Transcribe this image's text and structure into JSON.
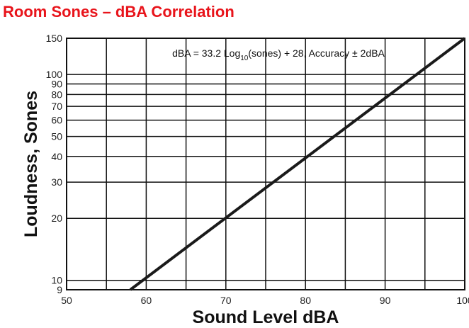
{
  "chart_data": {
    "type": "line",
    "title": "Room Sones – dBA Correlation",
    "xlabel": "Sound Level dBA",
    "ylabel": "Loudness, Sones",
    "x_scale": "linear",
    "y_scale": "log",
    "xlim": [
      50,
      100
    ],
    "ylim": [
      9,
      150
    ],
    "x_ticks": [
      50,
      60,
      70,
      80,
      90,
      100
    ],
    "x_tick_labels": [
      "50",
      "60",
      "70",
      "80",
      "90",
      "100"
    ],
    "x_gridlines": [
      55,
      60,
      65,
      70,
      75,
      80,
      85,
      90,
      95
    ],
    "y_ticks": [
      9,
      10,
      20,
      30,
      40,
      50,
      60,
      70,
      80,
      90,
      100,
      150
    ],
    "y_tick_labels": [
      "9",
      "10",
      "20",
      "30",
      "40",
      "50",
      "60",
      "70",
      "80",
      "90",
      "100",
      "150"
    ],
    "y_gridlines": [
      10,
      20,
      30,
      40,
      50,
      60,
      70,
      80,
      90,
      100
    ],
    "grid": true,
    "annotation": {
      "prefix": "dBA = 33.2 Log",
      "subscript": "10",
      "suffix": "(sones) + 28, Accuracy ± 2dBA"
    },
    "series": [
      {
        "x": [
          58.0,
          100.0
        ],
        "y": [
          9.0,
          150.0
        ],
        "color": "#1a1a1a"
      }
    ]
  }
}
